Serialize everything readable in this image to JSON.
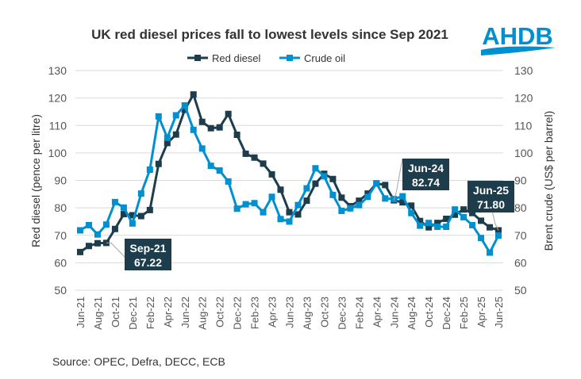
{
  "logo_text": "AHDB",
  "source": "Source: OPEC, Defra, DECC, ECB",
  "chart_data": {
    "type": "line",
    "title": "UK red diesel prices fall to lowest levels since Sep 2021",
    "ylabel": "Red diesel (pence per litre)",
    "y2label": "Brent crude (US$ per barrel)",
    "ylim": [
      50,
      130
    ],
    "y2lim": [
      50,
      130
    ],
    "yticks": [
      50,
      60,
      70,
      80,
      90,
      100,
      110,
      120,
      130
    ],
    "grid": true,
    "legend_position": "top",
    "xtick_labels": [
      "Jun-21",
      "Aug-21",
      "Oct-21",
      "Dec-21",
      "Feb-22",
      "Apr-22",
      "Jun-22",
      "Aug-22",
      "Oct-22",
      "Dec-22",
      "Feb-23",
      "Apr-23",
      "Jun-23",
      "Aug-23",
      "Oct-23",
      "Dec-23",
      "Feb-24",
      "Apr-24",
      "Jun-24",
      "Aug-24",
      "Oct-24",
      "Dec-24",
      "Feb-25",
      "Apr-25",
      "Jun-25"
    ],
    "x_start": "Jun-21",
    "x_end": "Jun-25",
    "series": [
      {
        "name": "Red diesel",
        "axis": "left",
        "color": "#1d3c4c",
        "values": [
          63.9,
          66.1,
          67.1,
          67.22,
          72.3,
          77.7,
          77.3,
          77.0,
          79.2,
          96.0,
          103.6,
          106.7,
          115.7,
          121.3,
          111.3,
          109.0,
          109.3,
          114.2,
          106.6,
          99.7,
          98.3,
          96.1,
          92.2,
          86.6,
          78.4,
          77.6,
          82.6,
          88.8,
          92.4,
          90.5,
          83.7,
          80.6,
          82.6,
          85.2,
          88.9,
          88.3,
          82.74,
          82.0,
          80.8,
          75.2,
          72.9,
          74.5,
          76.0,
          77.5,
          79.4,
          78.1,
          75.3,
          72.9,
          71.8
        ]
      },
      {
        "name": "Crude oil",
        "axis": "right",
        "color": "#0090d0",
        "values": [
          71.8,
          73.7,
          70.3,
          73.9,
          82.1,
          80.1,
          74.3,
          85.2,
          93.9,
          113.3,
          105.5,
          113.7,
          117.3,
          108.4,
          101.6,
          95.3,
          93.6,
          89.6,
          79.7,
          81.3,
          81.7,
          78.4,
          84.0,
          75.9,
          75.0,
          81.0,
          87.1,
          94.4,
          91.5,
          84.7,
          78.9,
          79.8,
          81.0,
          84.0,
          88.9,
          83.4,
          83.2,
          84.2,
          78.1,
          73.5,
          74.5,
          73.1,
          73.1,
          79.4,
          76.6,
          73.7,
          69.0,
          63.7,
          69.9
        ]
      }
    ],
    "annotations": [
      {
        "label": "Sep-21",
        "value": "67.22",
        "series": "Red diesel"
      },
      {
        "label": "Jun-24",
        "value": "82.74",
        "series": "Red diesel"
      },
      {
        "label": "Jun-25",
        "value": "71.80",
        "series": "Red diesel"
      }
    ]
  }
}
